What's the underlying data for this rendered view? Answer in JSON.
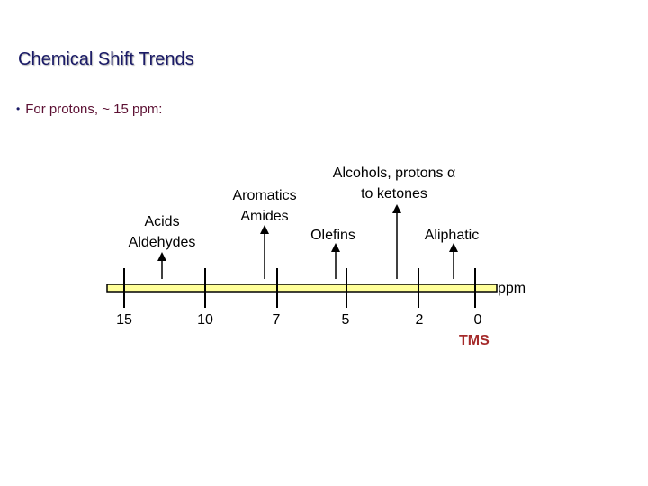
{
  "title": "Chemical Shift Trends",
  "bullet": "For protons, ~ 15 ppm:",
  "axis": {
    "unit": "ppm",
    "tick_labels": [
      "15",
      "10",
      "7",
      "5",
      "2",
      "0"
    ],
    "tms": "TMS",
    "bar_color": "#ffff99"
  },
  "regions": {
    "acids": {
      "line1": "Acids",
      "line2": "Aldehydes"
    },
    "aromatics": {
      "line1": "Aromatics",
      "line2": "Amides"
    },
    "alcohols": {
      "line1": "Alcohols, protons α",
      "line2": "to ketones"
    },
    "olefins": "Olefins",
    "aliphatic": "Aliphatic"
  }
}
